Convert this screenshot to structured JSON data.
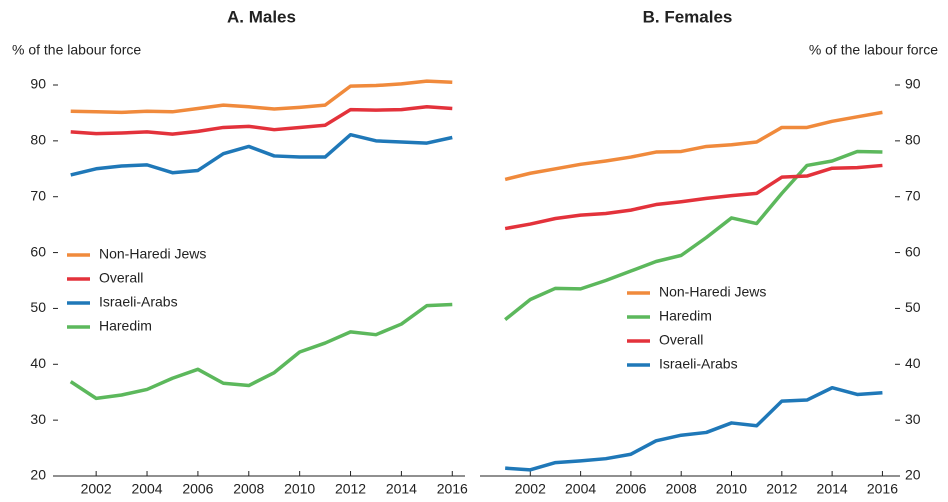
{
  "chart_data": [
    {
      "type": "line",
      "title": "A. Males",
      "ylabel": "% of the labour force",
      "x": [
        2001,
        2002,
        2003,
        2004,
        2005,
        2006,
        2007,
        2008,
        2009,
        2010,
        2011,
        2012,
        2013,
        2014,
        2015,
        2016
      ],
      "xlim": [
        2000.5,
        2016.5
      ],
      "xticks": [
        2002,
        2004,
        2006,
        2008,
        2010,
        2012,
        2014,
        2016
      ],
      "ylim": [
        20,
        90
      ],
      "yticks": [
        20,
        30,
        40,
        50,
        60,
        70,
        80,
        90
      ],
      "yaxis_side": "left",
      "legend": "center-left",
      "series": [
        {
          "name": "Non-Haredi Jews",
          "color": "#f08a3c",
          "values": [
            85.3,
            85.2,
            85.1,
            85.3,
            85.2,
            85.8,
            86.4,
            86.1,
            85.7,
            86.0,
            86.4,
            89.8,
            89.9,
            90.2,
            90.7,
            90.5
          ]
        },
        {
          "name": "Overall",
          "color": "#e3323b",
          "values": [
            81.6,
            81.3,
            81.4,
            81.6,
            81.2,
            81.7,
            82.4,
            82.6,
            82.0,
            82.4,
            82.8,
            85.6,
            85.5,
            85.6,
            86.1,
            85.8
          ]
        },
        {
          "name": "Israeli-Arabs",
          "color": "#1f78b8",
          "values": [
            73.9,
            75.0,
            75.5,
            75.7,
            74.3,
            74.7,
            77.7,
            79.0,
            77.3,
            77.1,
            77.1,
            81.1,
            80.0,
            79.8,
            79.6,
            80.6
          ]
        },
        {
          "name": "Haredim",
          "color": "#5cb85c",
          "values": [
            36.9,
            33.9,
            34.5,
            35.5,
            37.5,
            39.1,
            36.6,
            36.2,
            38.5,
            42.2,
            43.8,
            45.8,
            45.3,
            47.2,
            50.5,
            50.7
          ]
        }
      ]
    },
    {
      "type": "line",
      "title": "B. Females",
      "ylabel": "% of the labour force",
      "x": [
        2001,
        2002,
        2003,
        2004,
        2005,
        2006,
        2007,
        2008,
        2009,
        2010,
        2011,
        2012,
        2013,
        2014,
        2015,
        2016
      ],
      "xlim": [
        2000,
        2016.5
      ],
      "xticks": [
        2002,
        2004,
        2006,
        2008,
        2010,
        2012,
        2014,
        2016
      ],
      "ylim": [
        20,
        90
      ],
      "yticks": [
        20,
        30,
        40,
        50,
        60,
        70,
        80,
        90
      ],
      "yaxis_side": "right",
      "legend": "center",
      "series": [
        {
          "name": "Non-Haredi Jews",
          "color": "#f08a3c",
          "values": [
            73.1,
            74.2,
            75.0,
            75.8,
            76.4,
            77.1,
            78.0,
            78.1,
            79.0,
            79.3,
            79.8,
            82.4,
            82.4,
            83.5,
            84.3,
            85.1
          ]
        },
        {
          "name": "Haredim",
          "color": "#5cb85c",
          "values": [
            48.0,
            51.6,
            53.6,
            53.5,
            55.0,
            56.7,
            58.4,
            59.5,
            62.7,
            66.2,
            65.2,
            70.6,
            75.6,
            76.4,
            78.1,
            78.0
          ]
        },
        {
          "name": "Overall",
          "color": "#e3323b",
          "values": [
            64.3,
            65.1,
            66.1,
            66.7,
            67.0,
            67.6,
            68.6,
            69.1,
            69.7,
            70.2,
            70.6,
            73.5,
            73.7,
            75.1,
            75.2,
            75.6
          ]
        },
        {
          "name": "Israeli-Arabs",
          "color": "#1f78b8",
          "values": [
            21.4,
            21.1,
            22.4,
            22.7,
            23.1,
            23.9,
            26.3,
            27.3,
            27.8,
            29.5,
            29.0,
            33.4,
            33.6,
            35.8,
            34.6,
            34.9
          ]
        }
      ]
    }
  ]
}
